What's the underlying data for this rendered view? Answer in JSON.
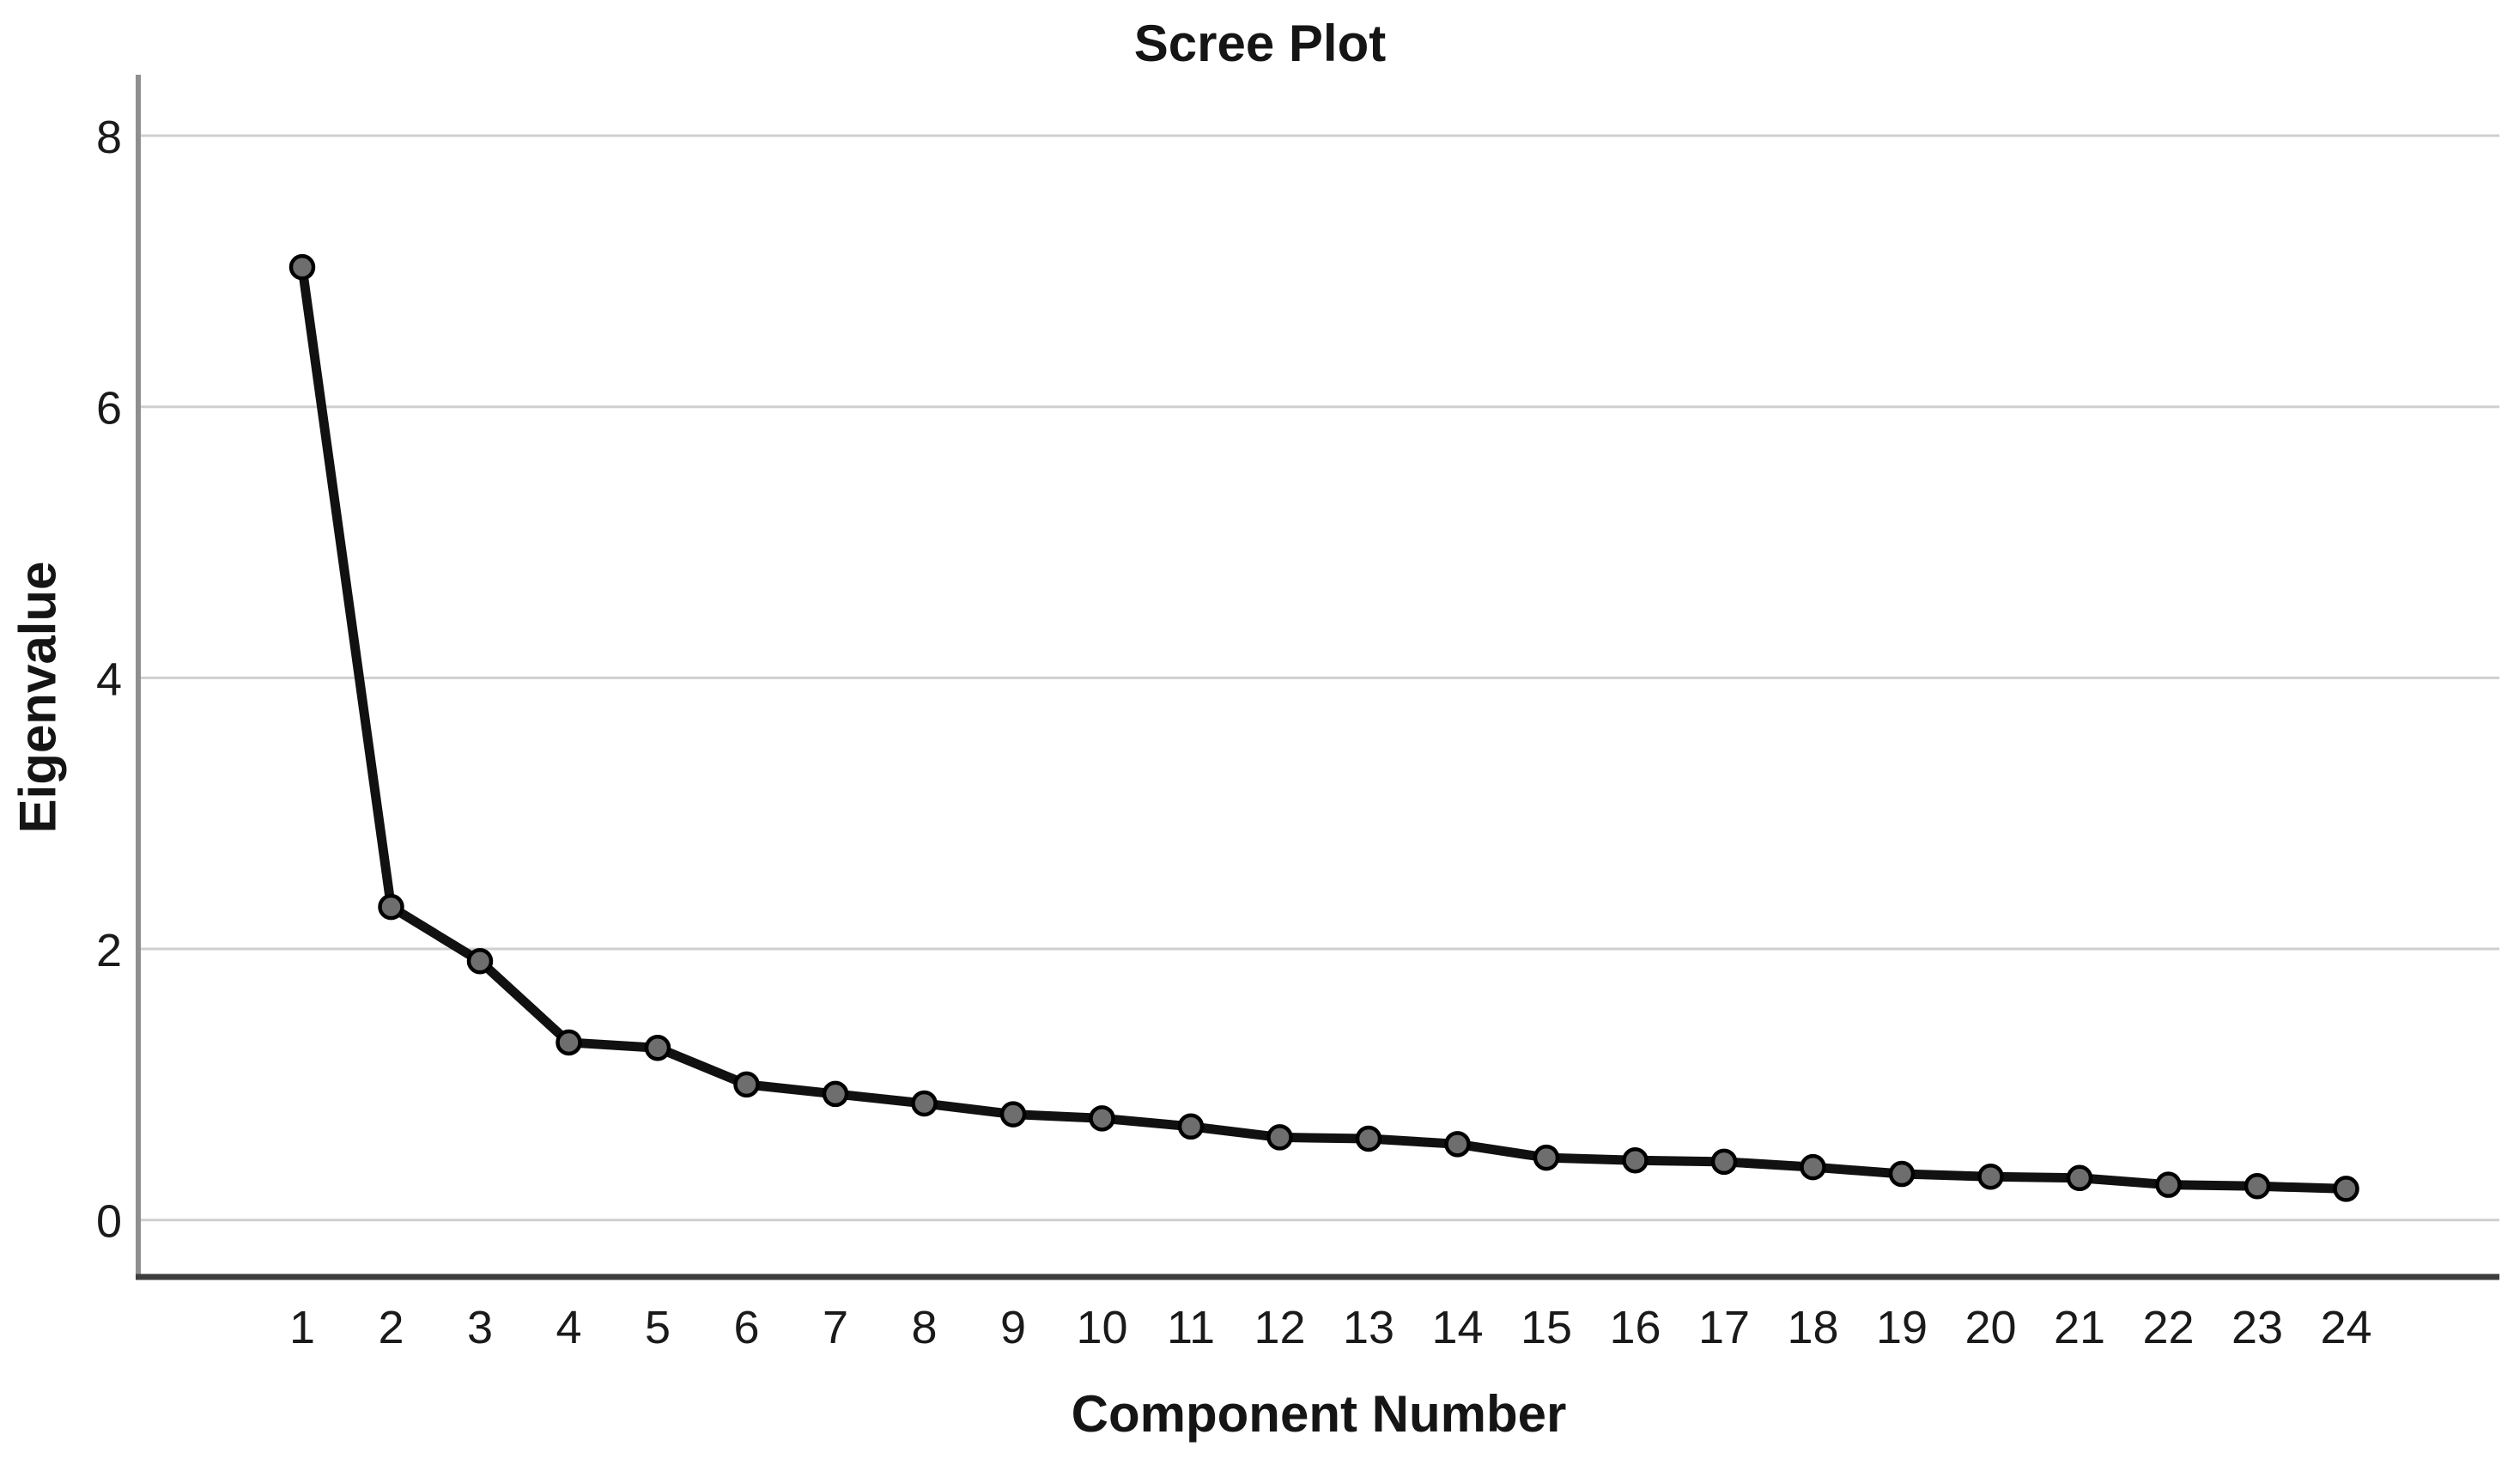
{
  "chart_data": {
    "type": "line",
    "title": "Scree Plot",
    "xlabel": "Component Number",
    "ylabel": "Eigenvalue",
    "x": [
      1,
      2,
      3,
      4,
      5,
      6,
      7,
      8,
      9,
      10,
      11,
      12,
      13,
      14,
      15,
      16,
      17,
      18,
      19,
      20,
      21,
      22,
      23,
      24
    ],
    "series": [
      {
        "name": "Eigenvalue",
        "values": [
          7.03,
          2.31,
          1.91,
          1.31,
          1.27,
          1.0,
          0.93,
          0.86,
          0.78,
          0.75,
          0.69,
          0.61,
          0.6,
          0.56,
          0.46,
          0.44,
          0.43,
          0.39,
          0.34,
          0.32,
          0.31,
          0.26,
          0.25,
          0.23
        ]
      }
    ],
    "x_tick_labels": [
      "1",
      "2",
      "3",
      "4",
      "5",
      "6",
      "7",
      "8",
      "9",
      "10",
      "11",
      "12",
      "13",
      "14",
      "15",
      "16",
      "17",
      "18",
      "19",
      "20",
      "21",
      "22",
      "23",
      "24"
    ],
    "y_tick_values": [
      0,
      2,
      4,
      6,
      8
    ],
    "y_tick_labels": [
      "0",
      "2",
      "4",
      "6",
      "8"
    ],
    "ylim": [
      -0.42,
      8.45
    ],
    "grid": "horizontal gridlines at labeled y ticks",
    "legend_position": "none",
    "marker": "filled circle",
    "colors": {
      "line": "#111111",
      "marker_fill": "#6e6e6e",
      "marker_stroke": "#000000",
      "gridline": "#cfcfcf",
      "y_axis_line": "#8f8f8f",
      "x_axis_line": "#3d3d3d",
      "text": "#1a1a1a",
      "background": "#ffffff"
    }
  }
}
